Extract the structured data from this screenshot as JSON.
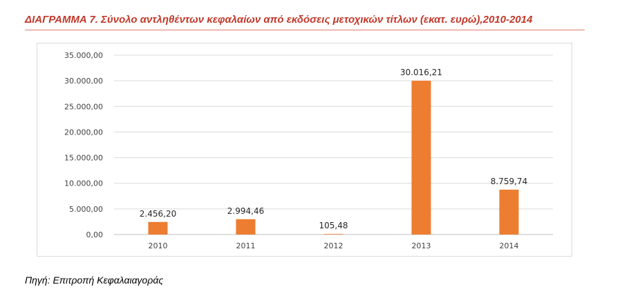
{
  "header": {
    "title": "ΔΙΑΓΡΑΜΜΑ 7. Σύνολο αντληθέντων κεφαλαίων από εκδόσεις μετοχικών τίτλων (εκατ. ευρώ),2010-2014"
  },
  "footer": {
    "source": "Πηγή: Επιτροπή Κεφαλαιαγοράς"
  },
  "colors": {
    "bar": "#ed7d31",
    "title": "#c0392b",
    "grid": "#d9d9d9"
  },
  "chart_data": {
    "type": "bar",
    "categories": [
      "2010",
      "2011",
      "2012",
      "2013",
      "2014"
    ],
    "values": [
      2456.2,
      2994.46,
      105.48,
      30016.21,
      8759.74
    ],
    "data_labels": [
      "2.456,20",
      "2.994,46",
      "105,48",
      "30.016,21",
      "8.759,74"
    ],
    "yticks": [
      0,
      5000,
      10000,
      15000,
      20000,
      25000,
      30000,
      35000
    ],
    "ytick_labels": [
      "0,00",
      "5.000,00",
      "10.000,00",
      "15.000,00",
      "20.000,00",
      "25.000,00",
      "30.000,00",
      "35.000,00"
    ],
    "ylim": [
      0,
      35000
    ],
    "grid": true,
    "title": "ΔΙΑΓΡΑΜΜΑ 7. Σύνολο αντληθέντων κεφαλαίων από εκδόσεις μετοχικών τίτλων (εκατ. ευρώ),2010-2014",
    "xlabel": "",
    "ylabel": ""
  }
}
